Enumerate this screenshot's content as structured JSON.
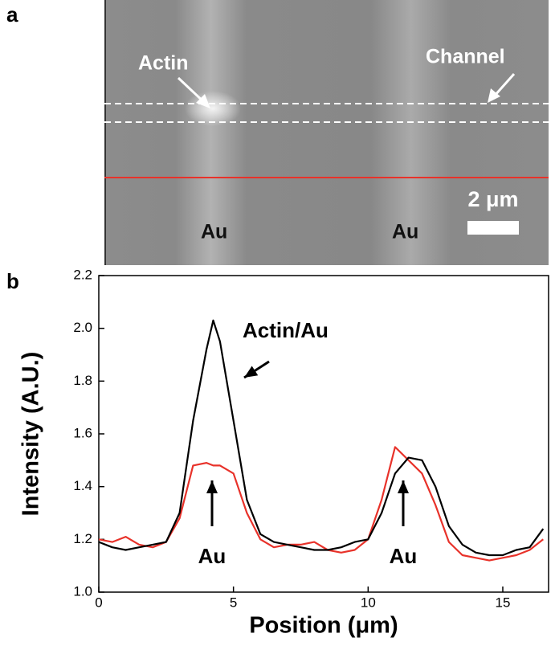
{
  "image": {
    "panel_label": "a",
    "labels": {
      "actin": "Actin",
      "channel": "Channel",
      "au_left": "Au",
      "au_right": "Au",
      "scale_bar": "2 μm"
    }
  },
  "chart_data": {
    "type": "line",
    "panel_label": "b",
    "xlabel": "Position (μm)",
    "ylabel": "Intensity (A.U.)",
    "x": [
      0,
      0.5,
      1,
      1.5,
      2,
      2.5,
      3,
      3.5,
      4,
      4.25,
      4.5,
      5,
      5.5,
      6,
      6.5,
      7,
      7.5,
      8,
      8.5,
      9,
      9.5,
      10,
      10.5,
      11,
      11.5,
      12,
      12.5,
      13,
      13.5,
      14,
      14.5,
      15,
      15.5,
      16,
      16.5
    ],
    "series": [
      {
        "color": "#e8322a",
        "values": [
          1.2,
          1.19,
          1.21,
          1.18,
          1.17,
          1.19,
          1.28,
          1.48,
          1.49,
          1.48,
          1.48,
          1.45,
          1.3,
          1.2,
          1.17,
          1.18,
          1.18,
          1.19,
          1.16,
          1.15,
          1.16,
          1.2,
          1.35,
          1.55,
          1.5,
          1.45,
          1.33,
          1.19,
          1.14,
          1.13,
          1.12,
          1.13,
          1.14,
          1.16,
          1.2
        ]
      },
      {
        "color": "#000000",
        "values": [
          1.19,
          1.17,
          1.16,
          1.17,
          1.18,
          1.19,
          1.3,
          1.65,
          1.92,
          2.03,
          1.95,
          1.65,
          1.35,
          1.22,
          1.19,
          1.18,
          1.17,
          1.16,
          1.16,
          1.17,
          1.19,
          1.2,
          1.3,
          1.45,
          1.51,
          1.5,
          1.4,
          1.25,
          1.18,
          1.15,
          1.14,
          1.14,
          1.16,
          1.17,
          1.24
        ]
      }
    ],
    "xlim": [
      0,
      16.7
    ],
    "ylim": [
      1.0,
      2.2
    ],
    "xticks": [
      0,
      5,
      10,
      15
    ],
    "yticks": [
      {
        "value": 1,
        "label": "1.0"
      },
      1.2,
      1.4,
      1.6,
      1.8,
      {
        "value": 2,
        "label": "2.0"
      },
      2.2
    ],
    "annotations": [
      "Actin/Au",
      "Au",
      "Au"
    ]
  }
}
